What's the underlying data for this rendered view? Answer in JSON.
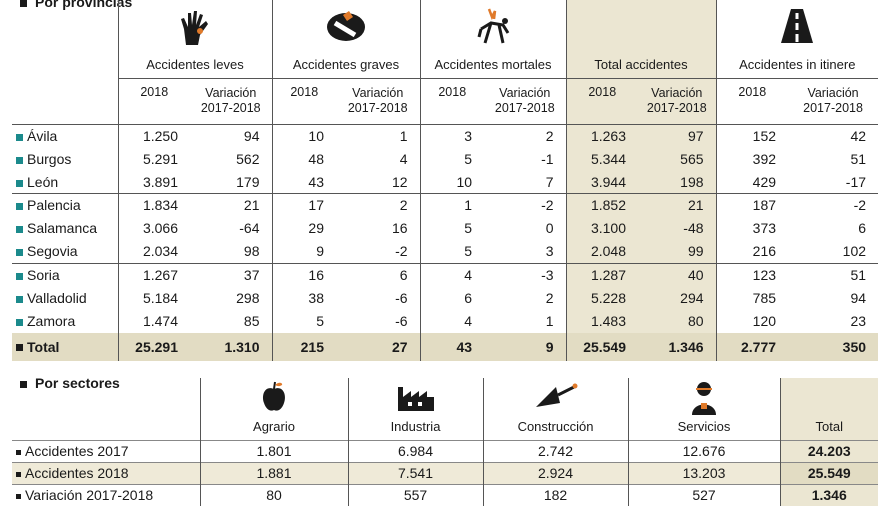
{
  "provincias": {
    "title": "Por provincias",
    "groups": [
      "Accidentes leves",
      "Accidentes graves",
      "Accidentes mortales",
      "Total accidentes",
      "Accidentes in itinere"
    ],
    "sub_year": "2018",
    "sub_var": [
      "Variación",
      "2017-2018"
    ],
    "icons": [
      "hand-icon",
      "bandage-icon",
      "broken-figure-icon",
      "road-icon"
    ],
    "rows": [
      {
        "name": "Ávila",
        "v": [
          "1.250",
          "94",
          "10",
          "1",
          "3",
          "2",
          "1.263",
          "97",
          "152",
          "42"
        ]
      },
      {
        "name": "Burgos",
        "v": [
          "5.291",
          "562",
          "48",
          "4",
          "5",
          "-1",
          "5.344",
          "565",
          "392",
          "51"
        ]
      },
      {
        "name": "León",
        "v": [
          "3.891",
          "179",
          "43",
          "12",
          "10",
          "7",
          "3.944",
          "198",
          "429",
          "-17"
        ]
      },
      {
        "name": "Palencia",
        "v": [
          "1.834",
          "21",
          "17",
          "2",
          "1",
          "-2",
          "1.852",
          "21",
          "187",
          "-2"
        ]
      },
      {
        "name": "Salamanca",
        "v": [
          "3.066",
          "-64",
          "29",
          "16",
          "5",
          "0",
          "3.100",
          "-48",
          "373",
          "6"
        ]
      },
      {
        "name": "Segovia",
        "v": [
          "2.034",
          "98",
          "9",
          "-2",
          "5",
          "3",
          "2.048",
          "99",
          "216",
          "102"
        ]
      },
      {
        "name": "Soria",
        "v": [
          "1.267",
          "37",
          "16",
          "6",
          "4",
          "-3",
          "1.287",
          "40",
          "123",
          "51"
        ]
      },
      {
        "name": "Valladolid",
        "v": [
          "5.184",
          "298",
          "38",
          "-6",
          "6",
          "2",
          "5.228",
          "294",
          "785",
          "94"
        ]
      },
      {
        "name": "Zamora",
        "v": [
          "1.474",
          "85",
          "5",
          "-6",
          "4",
          "1",
          "1.483",
          "80",
          "120",
          "23"
        ]
      }
    ],
    "total": {
      "name": "Total",
      "v": [
        "25.291",
        "1.310",
        "215",
        "27",
        "43",
        "9",
        "25.549",
        "1.346",
        "2.777",
        "350"
      ]
    }
  },
  "sectores": {
    "title": "Por sectores",
    "headers": [
      "Agrario",
      "Industria",
      "Construcción",
      "Servicios",
      "Total"
    ],
    "icons": [
      "apple-icon",
      "factory-icon",
      "trowel-icon",
      "worker-icon"
    ],
    "rows": [
      {
        "name": "Accidentes 2017",
        "v": [
          "1.801",
          "6.984",
          "2.742",
          "12.676",
          "24.203"
        ]
      },
      {
        "name": "Accidentes 2018",
        "v": [
          "1.881",
          "7.541",
          "2.924",
          "13.203",
          "25.549"
        ]
      },
      {
        "name": "Variación 2017-2018",
        "v": [
          "80",
          "557",
          "182",
          "527",
          "1.346"
        ]
      }
    ]
  }
}
